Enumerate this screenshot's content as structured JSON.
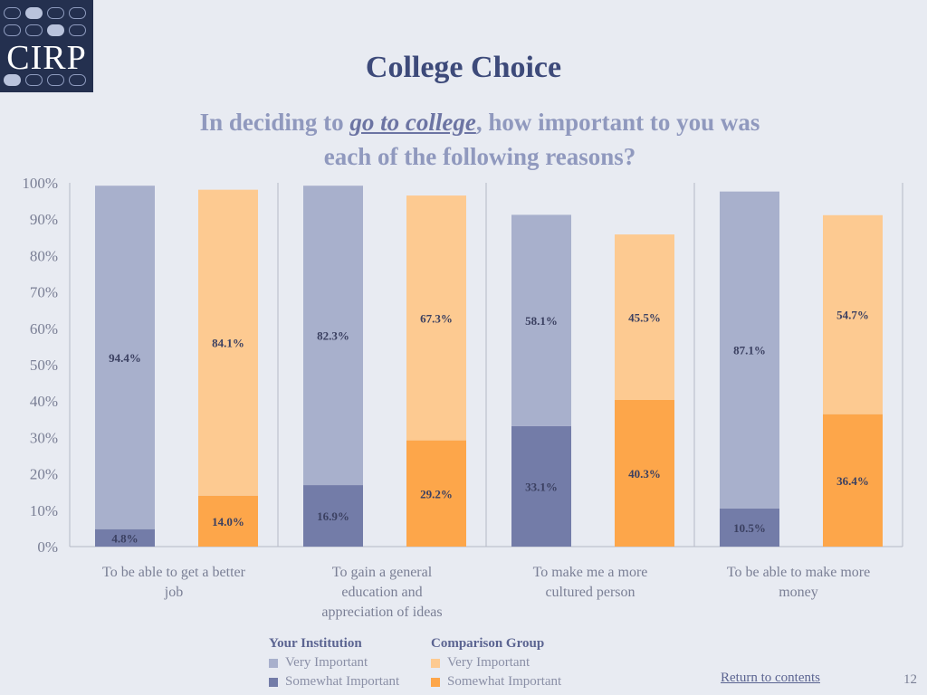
{
  "logo": {
    "text": "CIRP"
  },
  "title": "College Choice",
  "subtitle": {
    "prefix": "In deciding to ",
    "emphasis": "go to college",
    "suffix": ", how important to you was each of the following reasons?"
  },
  "colors": {
    "inst_very": "#a8b0cc",
    "inst_somewhat": "#737ca8",
    "comp_very": "#fdca91",
    "comp_somewhat": "#fda64a"
  },
  "chart_data": {
    "type": "bar",
    "stacked": true,
    "categories": [
      [
        "To be able to get a better",
        "job"
      ],
      [
        "To gain a general",
        "education and",
        "appreciation of ideas"
      ],
      [
        "To make me a more",
        "cultured person"
      ],
      [
        "To be able to make more",
        "money"
      ]
    ],
    "series": [
      {
        "group": "Your Institution",
        "name": "Somewhat Important",
        "values": [
          4.8,
          16.9,
          33.1,
          10.5
        ]
      },
      {
        "group": "Your Institution",
        "name": "Very Important",
        "values": [
          94.4,
          82.3,
          58.1,
          87.1
        ]
      },
      {
        "group": "Comparison Group",
        "name": "Somewhat Important",
        "values": [
          14.0,
          29.2,
          40.3,
          36.4
        ]
      },
      {
        "group": "Comparison Group",
        "name": "Very Important",
        "values": [
          84.1,
          67.3,
          45.5,
          54.7
        ]
      }
    ],
    "labels": {
      "inst_somewhat": [
        "4.8%",
        "16.9%",
        "33.1%",
        "10.5%"
      ],
      "inst_very": [
        "94.4%",
        "82.3%",
        "58.1%",
        "87.1%"
      ],
      "comp_somewhat": [
        "14.0%",
        "29.2%",
        "40.3%",
        "36.4%"
      ],
      "comp_very": [
        "84.1%",
        "67.3%",
        "45.5%",
        "54.7%"
      ]
    },
    "yticks": [
      "0%",
      "10%",
      "20%",
      "30%",
      "40%",
      "50%",
      "60%",
      "70%",
      "80%",
      "90%",
      "100%"
    ],
    "ylim": [
      0,
      100
    ],
    "grid": false
  },
  "legend": {
    "institution": {
      "title": "Your Institution",
      "very": "Very Important",
      "somewhat": "Somewhat Important"
    },
    "comparison": {
      "title": "Comparison Group",
      "very": "Very Important",
      "somewhat": "Somewhat Important"
    }
  },
  "footer": {
    "return_link": "Return to contents",
    "page_number": "12"
  }
}
